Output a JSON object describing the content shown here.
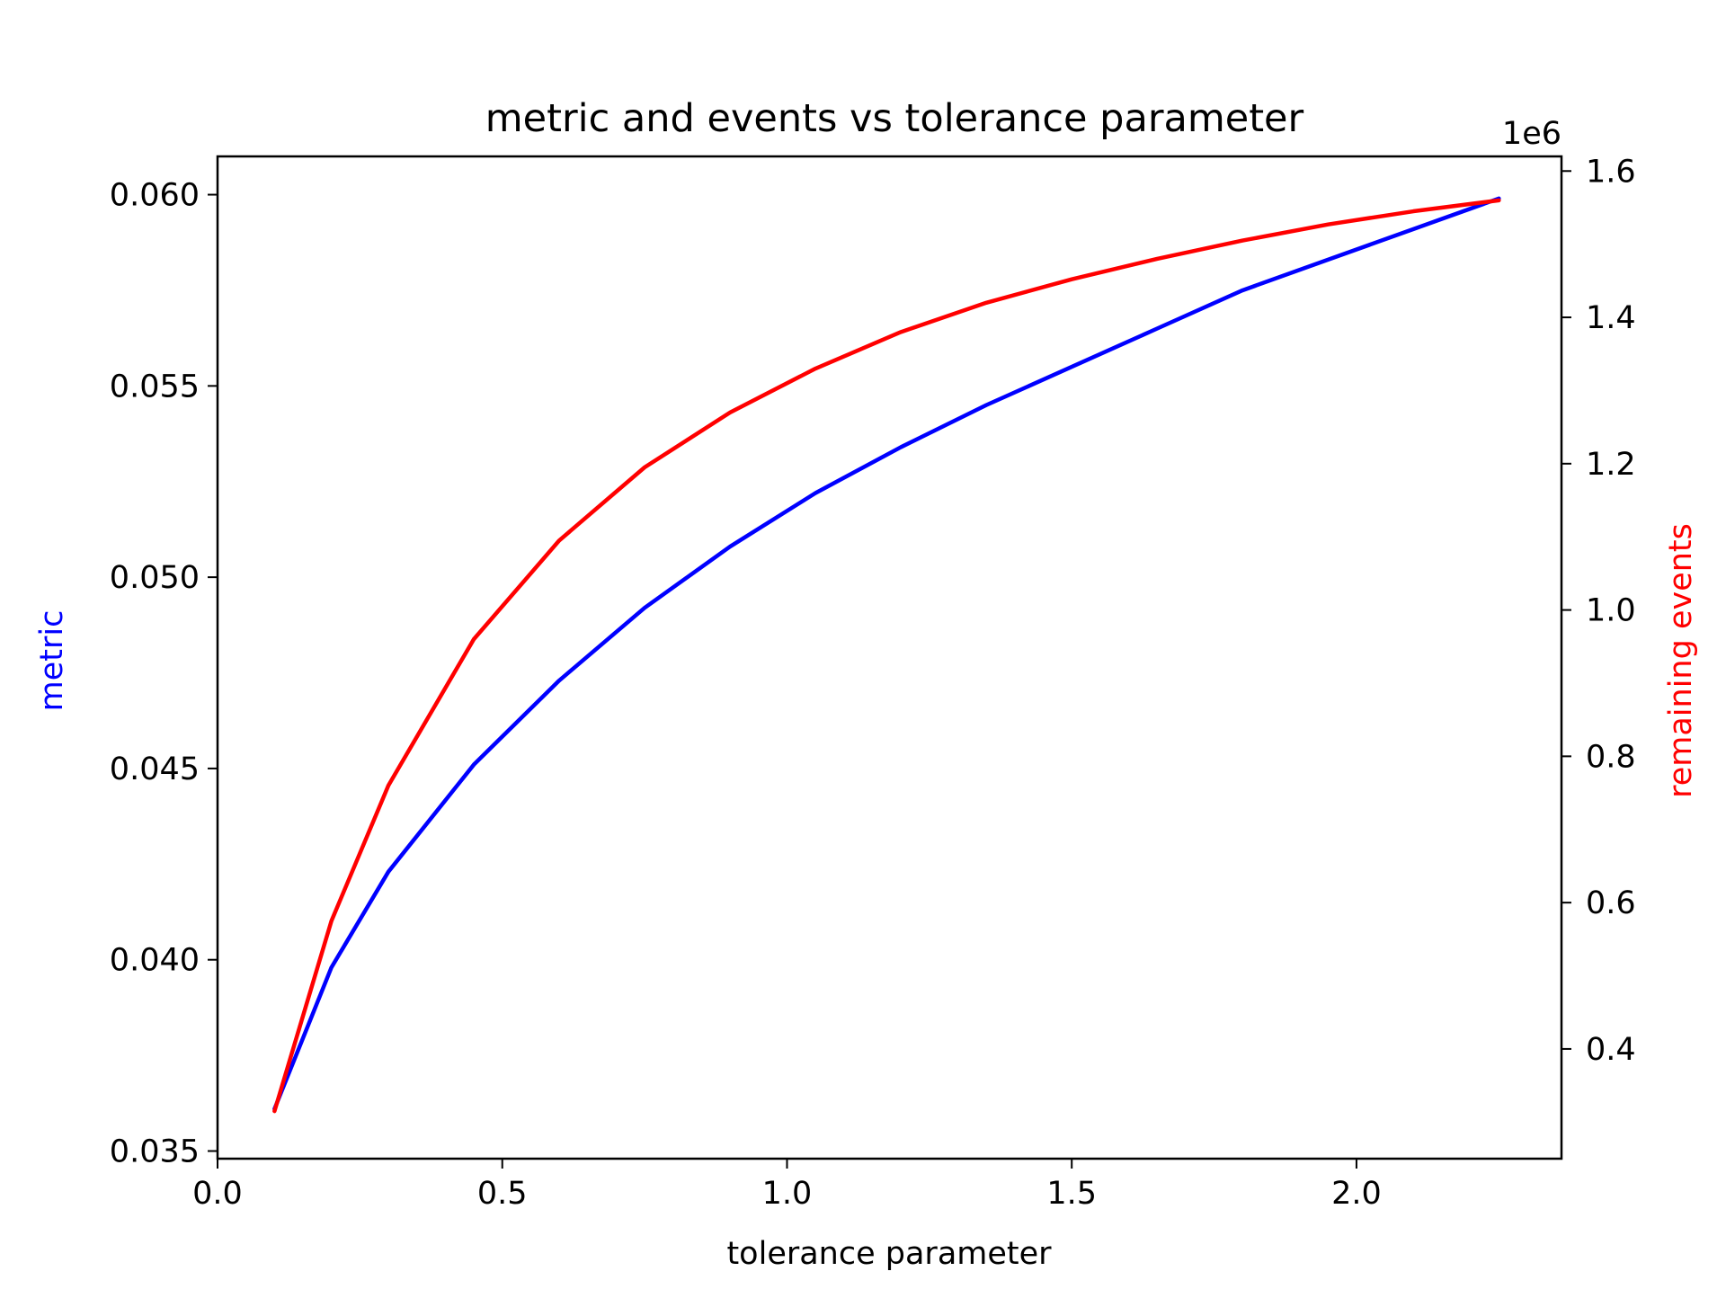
{
  "chart_data": {
    "type": "line",
    "title": "metric and events vs tolerance parameter",
    "xlabel": "tolerance parameter",
    "ylabel_left": "metric",
    "ylabel_right": "remaining events",
    "right_axis_offset_label": "1e6",
    "xlim": [
      0.0,
      2.36
    ],
    "ylim_left": [
      0.0348,
      0.061
    ],
    "ylim_right": [
      0.25,
      1.62
    ],
    "x_ticks": [
      0.0,
      0.5,
      1.0,
      1.5,
      2.0
    ],
    "x_tick_labels": [
      "0.0",
      "0.5",
      "1.0",
      "1.5",
      "2.0"
    ],
    "y_left_ticks": [
      0.035,
      0.04,
      0.045,
      0.05,
      0.055,
      0.06
    ],
    "y_left_tick_labels": [
      "0.035",
      "0.040",
      "0.045",
      "0.050",
      "0.055",
      "0.060"
    ],
    "y_right_ticks": [
      0.4,
      0.6,
      0.8,
      1.0,
      1.2,
      1.4,
      1.6
    ],
    "y_right_tick_labels": [
      "0.4",
      "0.6",
      "0.8",
      "1.0",
      "1.2",
      "1.4",
      "1.6"
    ],
    "grid": false,
    "x": [
      0.1,
      0.2,
      0.3,
      0.45,
      0.6,
      0.75,
      0.9,
      1.05,
      1.2,
      1.35,
      1.5,
      1.65,
      1.8,
      1.95,
      2.1,
      2.25
    ],
    "series": [
      {
        "axis": "left",
        "color": "#0000ff",
        "values": [
          0.0361,
          0.0398,
          0.0423,
          0.0451,
          0.0473,
          0.0492,
          0.0508,
          0.0522,
          0.0534,
          0.0545,
          0.0555,
          0.0565,
          0.0575,
          0.0583,
          0.0591,
          0.0599
        ]
      },
      {
        "axis": "right",
        "color": "#ff0000",
        "values": [
          0.315,
          0.575,
          0.76,
          0.96,
          1.095,
          1.195,
          1.27,
          1.33,
          1.38,
          1.42,
          1.452,
          1.48,
          1.505,
          1.527,
          1.545,
          1.56
        ]
      }
    ],
    "axis_label_colors": {
      "left": "#0000ff",
      "right": "#ff0000",
      "x": "#000000"
    }
  }
}
